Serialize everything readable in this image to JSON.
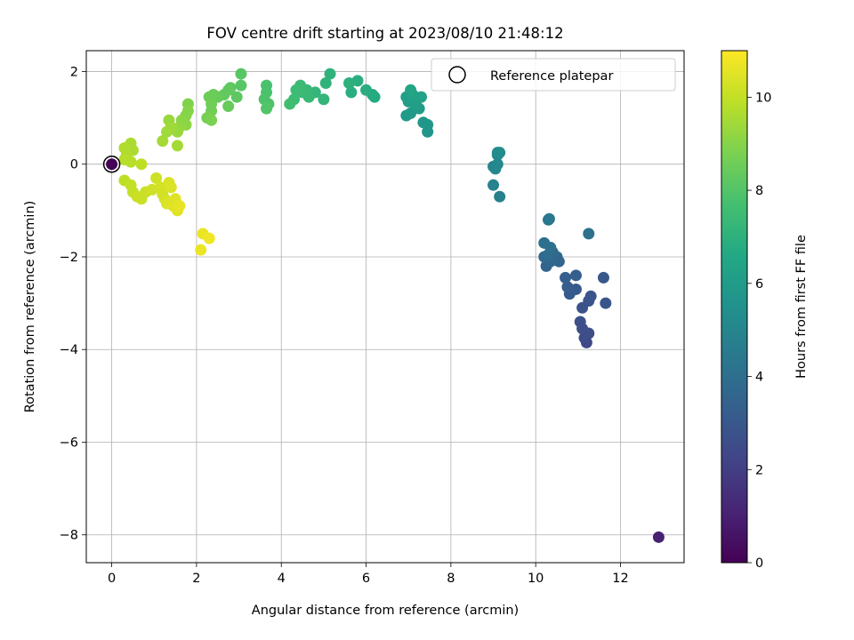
{
  "chart_data": {
    "type": "scatter",
    "title": "FOV centre drift starting at 2023/08/10 21:48:12",
    "xlabel": "Angular distance from reference (arcmin)",
    "ylabel": "Rotation from reference (arcmin)",
    "xlim": [
      -0.6,
      13.5
    ],
    "ylim": [
      -8.6,
      2.45
    ],
    "x_ticks": [
      0,
      2,
      4,
      6,
      8,
      10,
      12
    ],
    "y_ticks": [
      2,
      0,
      -2,
      -4,
      -6,
      -8
    ],
    "x_tick_labels": [
      "0",
      "2",
      "4",
      "6",
      "8",
      "10",
      "12"
    ],
    "y_tick_labels": [
      "2",
      "0",
      "−2",
      "−4",
      "−6",
      "−8"
    ],
    "grid": true,
    "legend": {
      "placement": "top-right",
      "entries": [
        "Reference platepar"
      ]
    },
    "colorbar": {
      "label": "Hours from first FF file",
      "colormap": "viridis",
      "range": [
        0,
        11
      ],
      "ticks": [
        0,
        2,
        4,
        6,
        8,
        10
      ],
      "tick_labels": [
        "0",
        "2",
        "4",
        "6",
        "8",
        "10"
      ]
    },
    "reference_point": {
      "x": 0,
      "y": 0
    },
    "points": [
      {
        "x": 0,
        "y": 0,
        "h": 0.05
      },
      {
        "x": 12.9,
        "y": -8.05,
        "h": 1.0
      },
      {
        "x": 11.2,
        "y": -3.85,
        "h": 2.4
      },
      {
        "x": 11.15,
        "y": -3.75,
        "h": 2.5
      },
      {
        "x": 11.25,
        "y": -3.65,
        "h": 2.6
      },
      {
        "x": 11.05,
        "y": -3.4,
        "h": 2.7
      },
      {
        "x": 11.1,
        "y": -3.55,
        "h": 2.6
      },
      {
        "x": 11.1,
        "y": -3.1,
        "h": 2.8
      },
      {
        "x": 11.25,
        "y": -2.95,
        "h": 2.8
      },
      {
        "x": 11.3,
        "y": -2.85,
        "h": 2.9
      },
      {
        "x": 11.65,
        "y": -3.0,
        "h": 2.9
      },
      {
        "x": 11.6,
        "y": -2.45,
        "h": 3.0
      },
      {
        "x": 10.8,
        "y": -2.8,
        "h": 3.1
      },
      {
        "x": 10.95,
        "y": -2.7,
        "h": 3.1
      },
      {
        "x": 10.75,
        "y": -2.65,
        "h": 3.2
      },
      {
        "x": 10.7,
        "y": -2.45,
        "h": 3.3
      },
      {
        "x": 10.95,
        "y": -2.4,
        "h": 3.3
      },
      {
        "x": 10.25,
        "y": -2.2,
        "h": 3.5
      },
      {
        "x": 10.35,
        "y": -2.1,
        "h": 3.6
      },
      {
        "x": 10.2,
        "y": -2.0,
        "h": 3.7
      },
      {
        "x": 10.45,
        "y": -2.05,
        "h": 3.7
      },
      {
        "x": 10.5,
        "y": -2.0,
        "h": 3.8
      },
      {
        "x": 10.4,
        "y": -1.9,
        "h": 3.8
      },
      {
        "x": 10.3,
        "y": -1.95,
        "h": 3.9
      },
      {
        "x": 10.35,
        "y": -1.8,
        "h": 4.0
      },
      {
        "x": 10.2,
        "y": -1.7,
        "h": 4.0
      },
      {
        "x": 10.55,
        "y": -2.1,
        "h": 3.6
      },
      {
        "x": 11.25,
        "y": -1.5,
        "h": 4.1
      },
      {
        "x": 10.3,
        "y": -1.2,
        "h": 4.3
      },
      {
        "x": 10.32,
        "y": -1.18,
        "h": 4.4
      },
      {
        "x": 9.15,
        "y": -0.7,
        "h": 4.8
      },
      {
        "x": 9.0,
        "y": -0.45,
        "h": 4.9
      },
      {
        "x": 9.05,
        "y": -0.1,
        "h": 5.0
      },
      {
        "x": 9.0,
        "y": -0.05,
        "h": 5.0
      },
      {
        "x": 9.1,
        "y": 0.0,
        "h": 5.1
      },
      {
        "x": 9.1,
        "y": 0.2,
        "h": 5.2
      },
      {
        "x": 9.15,
        "y": 0.25,
        "h": 5.3
      },
      {
        "x": 9.1,
        "y": 0.25,
        "h": 5.3
      },
      {
        "x": 7.45,
        "y": 0.7,
        "h": 5.7
      },
      {
        "x": 7.45,
        "y": 0.85,
        "h": 5.8
      },
      {
        "x": 7.35,
        "y": 0.9,
        "h": 5.8
      },
      {
        "x": 6.95,
        "y": 1.05,
        "h": 5.9
      },
      {
        "x": 7.05,
        "y": 1.1,
        "h": 6.0
      },
      {
        "x": 7.25,
        "y": 1.2,
        "h": 6.0
      },
      {
        "x": 7.15,
        "y": 1.3,
        "h": 6.1
      },
      {
        "x": 7.0,
        "y": 1.35,
        "h": 6.1
      },
      {
        "x": 7.2,
        "y": 1.4,
        "h": 6.2
      },
      {
        "x": 6.95,
        "y": 1.45,
        "h": 6.2
      },
      {
        "x": 7.1,
        "y": 1.5,
        "h": 6.3
      },
      {
        "x": 7.3,
        "y": 1.45,
        "h": 6.3
      },
      {
        "x": 7.05,
        "y": 1.6,
        "h": 6.4
      },
      {
        "x": 6.2,
        "y": 1.45,
        "h": 6.7
      },
      {
        "x": 6.15,
        "y": 1.5,
        "h": 6.7
      },
      {
        "x": 6.0,
        "y": 1.6,
        "h": 6.8
      },
      {
        "x": 5.8,
        "y": 1.8,
        "h": 6.9
      },
      {
        "x": 5.65,
        "y": 1.55,
        "h": 6.9
      },
      {
        "x": 5.6,
        "y": 1.75,
        "h": 7.0
      },
      {
        "x": 5.15,
        "y": 1.95,
        "h": 7.1
      },
      {
        "x": 5.05,
        "y": 1.75,
        "h": 7.1
      },
      {
        "x": 5.0,
        "y": 1.4,
        "h": 7.2
      },
      {
        "x": 4.8,
        "y": 1.55,
        "h": 7.2
      },
      {
        "x": 4.65,
        "y": 1.45,
        "h": 7.3
      },
      {
        "x": 4.6,
        "y": 1.6,
        "h": 7.3
      },
      {
        "x": 4.5,
        "y": 1.55,
        "h": 7.4
      },
      {
        "x": 4.45,
        "y": 1.7,
        "h": 7.4
      },
      {
        "x": 4.35,
        "y": 1.6,
        "h": 7.5
      },
      {
        "x": 4.3,
        "y": 1.4,
        "h": 7.5
      },
      {
        "x": 4.2,
        "y": 1.3,
        "h": 7.6
      },
      {
        "x": 3.65,
        "y": 1.7,
        "h": 7.8
      },
      {
        "x": 3.65,
        "y": 1.55,
        "h": 7.8
      },
      {
        "x": 3.6,
        "y": 1.4,
        "h": 7.9
      },
      {
        "x": 3.7,
        "y": 1.3,
        "h": 7.9
      },
      {
        "x": 3.65,
        "y": 1.2,
        "h": 8.0
      },
      {
        "x": 3.05,
        "y": 1.95,
        "h": 8.1
      },
      {
        "x": 3.05,
        "y": 1.7,
        "h": 8.1
      },
      {
        "x": 2.95,
        "y": 1.45,
        "h": 8.2
      },
      {
        "x": 2.8,
        "y": 1.65,
        "h": 8.2
      },
      {
        "x": 2.75,
        "y": 1.6,
        "h": 8.3
      },
      {
        "x": 2.65,
        "y": 1.5,
        "h": 8.3
      },
      {
        "x": 2.75,
        "y": 1.25,
        "h": 8.4
      },
      {
        "x": 2.5,
        "y": 1.45,
        "h": 8.4
      },
      {
        "x": 2.4,
        "y": 1.5,
        "h": 8.5
      },
      {
        "x": 2.3,
        "y": 1.45,
        "h": 8.5
      },
      {
        "x": 2.35,
        "y": 1.3,
        "h": 8.6
      },
      {
        "x": 2.35,
        "y": 1.15,
        "h": 8.6
      },
      {
        "x": 2.3,
        "y": 1.0,
        "h": 8.7
      },
      {
        "x": 2.25,
        "y": 1.0,
        "h": 8.7
      },
      {
        "x": 2.35,
        "y": 0.95,
        "h": 8.8
      },
      {
        "x": 1.8,
        "y": 1.3,
        "h": 8.9
      },
      {
        "x": 1.8,
        "y": 1.15,
        "h": 9.0
      },
      {
        "x": 1.75,
        "y": 1.05,
        "h": 9.0
      },
      {
        "x": 1.65,
        "y": 0.95,
        "h": 9.1
      },
      {
        "x": 1.75,
        "y": 0.85,
        "h": 9.1
      },
      {
        "x": 1.6,
        "y": 0.8,
        "h": 9.2
      },
      {
        "x": 1.5,
        "y": 0.75,
        "h": 9.2
      },
      {
        "x": 1.55,
        "y": 0.7,
        "h": 9.3
      },
      {
        "x": 1.35,
        "y": 0.95,
        "h": 9.3
      },
      {
        "x": 1.4,
        "y": 0.8,
        "h": 9.4
      },
      {
        "x": 1.3,
        "y": 0.7,
        "h": 9.4
      },
      {
        "x": 1.2,
        "y": 0.5,
        "h": 9.5
      },
      {
        "x": 1.55,
        "y": 0.4,
        "h": 9.5
      },
      {
        "x": 0.45,
        "y": 0.45,
        "h": 9.6
      },
      {
        "x": 0.5,
        "y": 0.3,
        "h": 9.6
      },
      {
        "x": 0.3,
        "y": 0.35,
        "h": 9.7
      },
      {
        "x": 0.35,
        "y": 0.2,
        "h": 9.7
      },
      {
        "x": 0.3,
        "y": 0.1,
        "h": 9.8
      },
      {
        "x": 0.45,
        "y": 0.05,
        "h": 9.8
      },
      {
        "x": 0.7,
        "y": 0.0,
        "h": 9.9
      },
      {
        "x": 0.3,
        "y": -0.35,
        "h": 9.9
      },
      {
        "x": 0.45,
        "y": -0.45,
        "h": 10.0
      },
      {
        "x": 0.5,
        "y": -0.6,
        "h": 10.0
      },
      {
        "x": 0.6,
        "y": -0.7,
        "h": 10.1
      },
      {
        "x": 0.7,
        "y": -0.75,
        "h": 10.1
      },
      {
        "x": 0.8,
        "y": -0.6,
        "h": 10.1
      },
      {
        "x": 0.95,
        "y": -0.55,
        "h": 10.2
      },
      {
        "x": 1.05,
        "y": -0.3,
        "h": 10.2
      },
      {
        "x": 1.15,
        "y": -0.5,
        "h": 10.3
      },
      {
        "x": 1.2,
        "y": -0.65,
        "h": 10.3
      },
      {
        "x": 1.25,
        "y": -0.75,
        "h": 10.3
      },
      {
        "x": 1.3,
        "y": -0.85,
        "h": 10.4
      },
      {
        "x": 1.4,
        "y": -0.5,
        "h": 10.4
      },
      {
        "x": 1.35,
        "y": -0.4,
        "h": 10.4
      },
      {
        "x": 1.5,
        "y": -0.75,
        "h": 10.5
      },
      {
        "x": 1.45,
        "y": -0.9,
        "h": 10.5
      },
      {
        "x": 1.55,
        "y": -1.0,
        "h": 10.5
      },
      {
        "x": 1.6,
        "y": -0.9,
        "h": 10.6
      },
      {
        "x": 2.1,
        "y": -1.85,
        "h": 10.7
      },
      {
        "x": 2.15,
        "y": -1.5,
        "h": 10.7
      },
      {
        "x": 2.3,
        "y": -1.6,
        "h": 10.8
      }
    ]
  }
}
